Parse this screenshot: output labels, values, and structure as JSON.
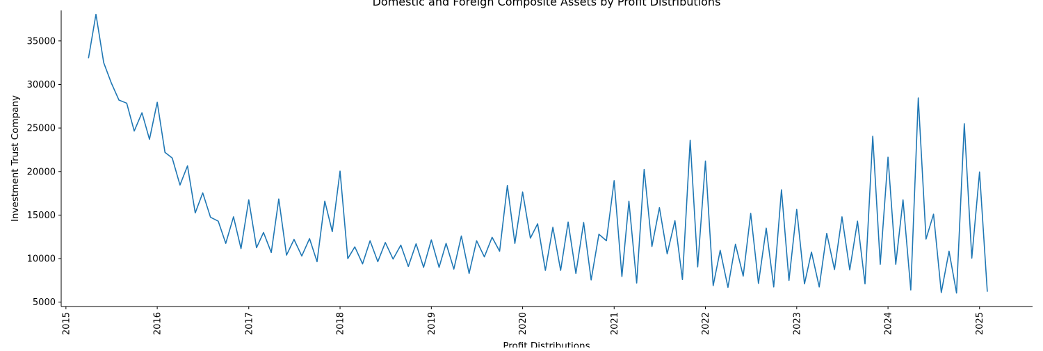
{
  "chart_data": {
    "type": "line",
    "title": "Domestic and Foreign Composite Assets by Profit Distributions",
    "xlabel": "Profit Distributions",
    "ylabel": "Investment Trust Company",
    "xlim": [
      "2014-12-13",
      "2025-08-01"
    ],
    "ylim": [
      4500,
      38500
    ],
    "yticks": [
      5000,
      10000,
      15000,
      20000,
      25000,
      30000,
      35000
    ],
    "xticks": [
      "2015",
      "2016",
      "2017",
      "2018",
      "2019",
      "2020",
      "2021",
      "2022",
      "2023",
      "2024",
      "2025"
    ],
    "grid": false,
    "line_color": "#1f77b4",
    "series": [
      {
        "name": "",
        "x": [
          "2015-04",
          "2015-05",
          "2015-06",
          "2015-07",
          "2015-08",
          "2015-09",
          "2015-10",
          "2015-11",
          "2015-12",
          "2016-01",
          "2016-02",
          "2016-03",
          "2016-04",
          "2016-05",
          "2016-06",
          "2016-07",
          "2016-08",
          "2016-09",
          "2016-10",
          "2016-11",
          "2016-12",
          "2017-01",
          "2017-02",
          "2017-03",
          "2017-04",
          "2017-05",
          "2017-06",
          "2017-07",
          "2017-08",
          "2017-09",
          "2017-10",
          "2017-11",
          "2017-12",
          "2018-01",
          "2018-02",
          "2018-03",
          "2018-04",
          "2018-05",
          "2018-06",
          "2018-07",
          "2018-08",
          "2018-09",
          "2018-10",
          "2018-11",
          "2018-12",
          "2019-01",
          "2019-02",
          "2019-03",
          "2019-04",
          "2019-05",
          "2019-06",
          "2019-07",
          "2019-08",
          "2019-09",
          "2019-10",
          "2019-11",
          "2019-12",
          "2020-01",
          "2020-02",
          "2020-03",
          "2020-04",
          "2020-05",
          "2020-06",
          "2020-07",
          "2020-08",
          "2020-09",
          "2020-10",
          "2020-11",
          "2020-12",
          "2021-01",
          "2021-02",
          "2021-03",
          "2021-04",
          "2021-05",
          "2021-06",
          "2021-07",
          "2021-08",
          "2021-09",
          "2021-10",
          "2021-11",
          "2021-12",
          "2022-01",
          "2022-02",
          "2022-03",
          "2022-04",
          "2022-05",
          "2022-06",
          "2022-07",
          "2022-08",
          "2022-09",
          "2022-10",
          "2022-11",
          "2022-12",
          "2023-01",
          "2023-02",
          "2023-03",
          "2023-04",
          "2023-05",
          "2023-06",
          "2023-07",
          "2023-08",
          "2023-09",
          "2023-10",
          "2023-11",
          "2023-12",
          "2024-01",
          "2024-02",
          "2024-03",
          "2024-04",
          "2024-05",
          "2024-06",
          "2024-07",
          "2024-08",
          "2024-09",
          "2024-10",
          "2024-11",
          "2024-12",
          "2025-01",
          "2025-02"
        ],
        "values": [
          33000,
          38050,
          32500,
          30200,
          28200,
          27850,
          24650,
          26750,
          23700,
          27950,
          22200,
          21550,
          18450,
          20650,
          15250,
          17550,
          14750,
          14300,
          11750,
          14800,
          11150,
          16750,
          11250,
          13000,
          10700,
          16850,
          10400,
          12200,
          10300,
          12300,
          9650,
          16600,
          13100,
          20050,
          10000,
          11350,
          9400,
          12050,
          9650,
          11850,
          9950,
          11550,
          9100,
          11700,
          9000,
          12150,
          9000,
          11750,
          8800,
          12600,
          8300,
          12050,
          10200,
          12450,
          10850,
          18400,
          11750,
          17650,
          12350,
          14000,
          8650,
          13600,
          8650,
          14200,
          8300,
          14150,
          7550,
          12800,
          12050,
          18950,
          7950,
          16600,
          7200,
          20250,
          11400,
          15850,
          10550,
          14350,
          7600,
          23600,
          9050,
          21200,
          6900,
          10950,
          6700,
          11650,
          8000,
          15200,
          7150,
          13500,
          6750,
          17900,
          7500,
          15650,
          7100,
          10750,
          6750,
          12900,
          8750,
          14800,
          8700,
          14300,
          7100,
          24050,
          9350,
          21650,
          9350,
          16750,
          6400,
          28450,
          12250,
          15100,
          6100,
          10850,
          6050,
          25500,
          10050,
          19950,
          6200
        ]
      }
    ]
  }
}
